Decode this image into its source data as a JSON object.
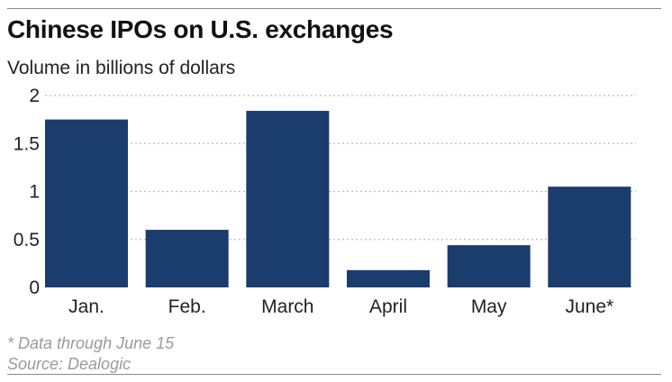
{
  "header": {
    "title": "Chinese IPOs on U.S. exchanges",
    "subtitle": "Volume in billions of dollars"
  },
  "chart_data": {
    "type": "bar",
    "title": "Chinese IPOs on U.S. exchanges",
    "subtitle": "Volume in billions of dollars",
    "categories": [
      "Jan.",
      "Feb.",
      "March",
      "April",
      "May",
      "June*"
    ],
    "values": [
      1.75,
      0.6,
      1.84,
      0.18,
      0.44,
      1.05
    ],
    "ylim": [
      0,
      2
    ],
    "yticks": [
      0,
      0.5,
      1,
      1.5,
      2
    ],
    "ytick_labels": [
      "0",
      "0.5",
      "1",
      "1.5",
      "2"
    ],
    "grid": true,
    "bar_color": "#1a3d6e",
    "grid_color": "#bdbdbd"
  },
  "footer": {
    "note": "* Data through June 15",
    "source": "Source: Dealogic"
  }
}
